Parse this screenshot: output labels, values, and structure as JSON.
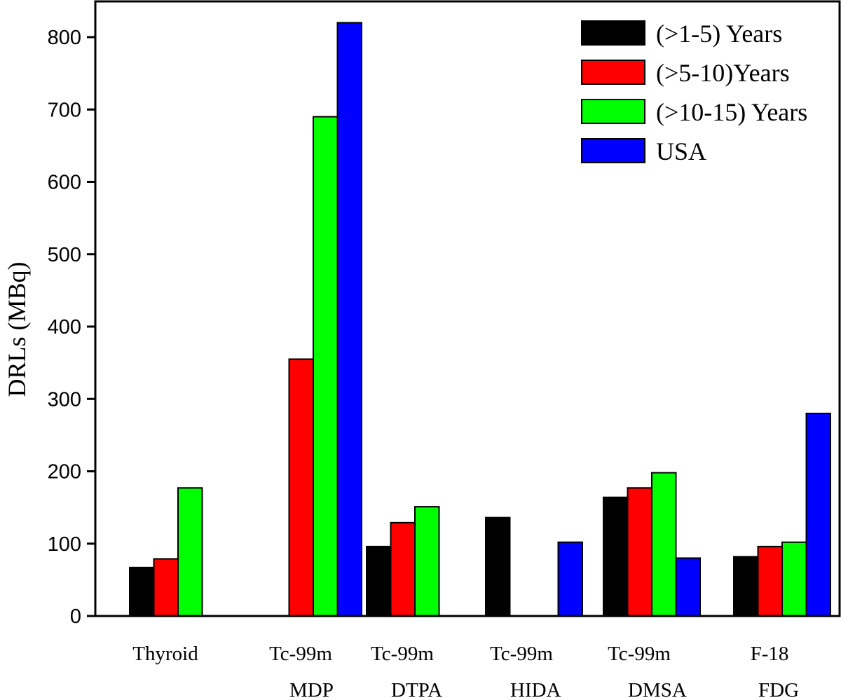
{
  "chart_data": {
    "type": "bar",
    "title": "",
    "xlabel": "",
    "ylabel": "DRLs (MBq)",
    "ylim": [
      0,
      850
    ],
    "yticks": [
      0,
      100,
      200,
      300,
      400,
      500,
      600,
      700,
      800
    ],
    "grid": false,
    "legend_position": "top-right",
    "categories": [
      {
        "line1": "Thyroid",
        "line2": ""
      },
      {
        "line1": "Tc-99m",
        "line2": "MDP"
      },
      {
        "line1": "Tc-99m",
        "line2": "DTPA"
      },
      {
        "line1": "Tc-99m",
        "line2": "HIDA"
      },
      {
        "line1": "Tc-99m",
        "line2": "DMSA"
      },
      {
        "line1": "F-18",
        "line2": "FDG"
      }
    ],
    "series": [
      {
        "name": "(>1-5) Years",
        "color": "#000000",
        "values": [
          67,
          null,
          96,
          136,
          164,
          82
        ]
      },
      {
        "name": "(>5-10)Years",
        "color": "#ff0000",
        "values": [
          79,
          355,
          129,
          0,
          177,
          96
        ]
      },
      {
        "name": "(>10-15) Years",
        "color": "#00ff00",
        "values": [
          177,
          690,
          151,
          0,
          198,
          102
        ]
      },
      {
        "name": "USA",
        "color": "#0000ff",
        "values": [
          null,
          820,
          null,
          102,
          80,
          280
        ]
      }
    ]
  }
}
